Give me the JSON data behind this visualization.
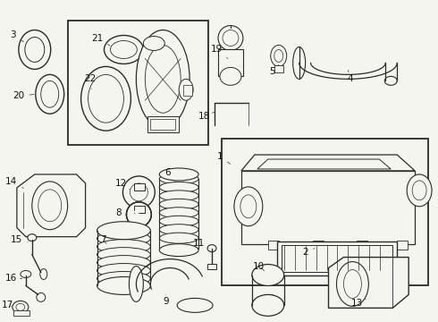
{
  "bg_color": "#f5f5f0",
  "line_color": "#2a2a2a",
  "label_color": "#111111",
  "fig_width": 4.9,
  "fig_height": 3.6,
  "dpi": 100
}
